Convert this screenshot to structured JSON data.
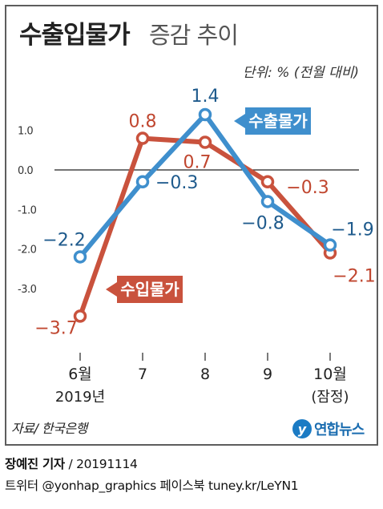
{
  "chart_data": {
    "type": "line",
    "title_bold": "수출입물가",
    "title_rest": "증감 추이",
    "unit_note": "단위: % (전월 대비)",
    "categories": [
      "6월",
      "7",
      "8",
      "9",
      "10월"
    ],
    "category_sublabels": [
      "2019년",
      "",
      "",
      "",
      "(잠정)"
    ],
    "ylim": [
      -4.1,
      1.9
    ],
    "yticks": [
      1.0,
      0.0,
      -1.0,
      -2.0,
      -3.0
    ],
    "ytick_labels": [
      "1.0",
      "0.0",
      "-1.0",
      "-2.0",
      "-3.0"
    ],
    "grid": false,
    "series": [
      {
        "name": "수출물가",
        "color": "#3f8fcd",
        "value_color": "#1e5a8c",
        "values": [
          -2.2,
          -0.3,
          1.4,
          -0.8,
          -1.9
        ],
        "value_labels": [
          "−2.2",
          "−0.3",
          "1.4",
          "−0.8",
          "−1.9"
        ]
      },
      {
        "name": "수입물가",
        "color": "#c9523d",
        "value_color": "#c0462f",
        "values": [
          -3.7,
          0.8,
          0.7,
          -0.3,
          -2.1
        ],
        "value_labels": [
          "−3.7",
          "0.8",
          "0.7",
          "−0.3",
          "−2.1"
        ]
      }
    ],
    "source": "자료/ 한국은행",
    "logo_text": "연합뉴스"
  },
  "footer": {
    "author": "장예진 기자",
    "date": " / 20191114",
    "social": "트위터 @yonhap_graphics  페이스북 tuney.kr/LeYN1"
  },
  "colors": {
    "frame": "#5d5d5d",
    "text": "#222222",
    "export_line": "#3f8fcd",
    "import_line": "#c9523d"
  }
}
